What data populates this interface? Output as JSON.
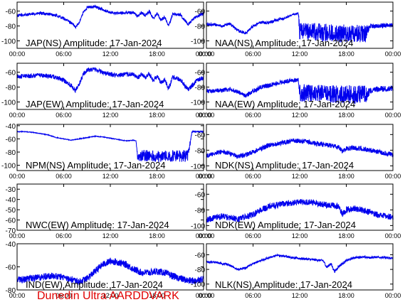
{
  "footer": "Dunedin Ultra AARDDVARK",
  "colors": {
    "trace": "#0000ee",
    "axes": "#000000",
    "footer": "#e00000"
  },
  "chart_data": [
    {
      "type": "line",
      "title": "JAP(NS) Amplitude: 17-Jan-2024",
      "x_ticks": [
        "00:00",
        "06:00",
        "12:00",
        "18:00",
        "00:00"
      ],
      "xlim_hours": [
        0,
        24
      ],
      "y_ticks": [
        -60,
        -80,
        -100
      ],
      "ylim": [
        -110,
        -48
      ],
      "series": [
        {
          "x_hours": [
            0,
            1,
            2,
            3,
            4,
            5,
            6,
            7,
            7.5,
            8,
            8.5,
            9,
            10,
            11,
            12,
            13,
            14,
            15,
            15.5,
            16,
            16.5,
            17,
            17.5,
            18,
            18.5,
            19,
            19.5,
            20,
            21,
            22,
            23,
            24
          ],
          "y": [
            -66,
            -65,
            -64,
            -63,
            -64,
            -66,
            -70,
            -76,
            -82,
            -75,
            -62,
            -55,
            -54,
            -58,
            -62,
            -63,
            -62,
            -62,
            -67,
            -62,
            -66,
            -60,
            -70,
            -63,
            -72,
            -68,
            -80,
            -64,
            -65,
            -78,
            -68,
            -63
          ],
          "noise": [
            2,
            2,
            2,
            2,
            2,
            2,
            2,
            2,
            2,
            2,
            2,
            2,
            2,
            2,
            2,
            2,
            2,
            2,
            2,
            2,
            2,
            2,
            2,
            2,
            2,
            2,
            2,
            2,
            2,
            2,
            2,
            2
          ]
        }
      ]
    },
    {
      "type": "line",
      "title": "NAA(NS) Amplitude: 17-Jan-2024",
      "x_ticks": [
        "00:00",
        "06:00",
        "12:00",
        "18:00",
        "00:00"
      ],
      "xlim_hours": [
        0,
        24
      ],
      "y_ticks": [
        -60,
        -80,
        -100
      ],
      "ylim": [
        -110,
        -48
      ],
      "series": [
        {
          "x_hours": [
            0,
            1,
            2,
            3,
            4,
            5,
            6,
            7,
            8,
            9,
            10,
            11,
            11.8,
            12,
            13,
            14,
            15,
            16,
            17,
            18,
            19,
            20,
            20.5,
            21,
            22,
            23,
            24
          ],
          "y": [
            -78,
            -78,
            -80,
            -77,
            -86,
            -90,
            -80,
            -75,
            -76,
            -72,
            -70,
            -65,
            -63,
            -88,
            -88,
            -88,
            -89,
            -89,
            -90,
            -90,
            -90,
            -90,
            -90,
            -80,
            -80,
            -79,
            -79
          ],
          "noise": [
            2,
            2,
            2,
            2,
            2,
            2,
            2,
            2,
            2,
            2,
            2,
            1,
            1,
            12,
            12,
            12,
            12,
            12,
            12,
            12,
            12,
            12,
            12,
            3,
            3,
            3,
            3
          ]
        }
      ]
    },
    {
      "type": "line",
      "title": "JAP(EW) Amplitude: 17-Jan-2024",
      "x_ticks": [
        "00:00",
        "06:00",
        "12:00",
        "18:00",
        "00:00"
      ],
      "xlim_hours": [
        0,
        24
      ],
      "y_ticks": [
        -60,
        -80,
        -100
      ],
      "ylim": [
        -110,
        -48
      ],
      "series": [
        {
          "x_hours": [
            0,
            1,
            2,
            3,
            4,
            5,
            6,
            7,
            7.5,
            8,
            8.5,
            9,
            10,
            11,
            12,
            13,
            14,
            15,
            15.5,
            16,
            16.5,
            17,
            17.5,
            18,
            18.5,
            19,
            19.5,
            20,
            21,
            22,
            23,
            24
          ],
          "y": [
            -66,
            -65,
            -65,
            -64,
            -65,
            -67,
            -71,
            -78,
            -85,
            -76,
            -63,
            -57,
            -56,
            -60,
            -63,
            -64,
            -63,
            -63,
            -68,
            -63,
            -67,
            -62,
            -72,
            -65,
            -74,
            -70,
            -82,
            -67,
            -70,
            -84,
            -72,
            -67
          ],
          "noise": [
            3,
            3,
            3,
            3,
            3,
            3,
            3,
            3,
            3,
            3,
            3,
            3,
            3,
            3,
            3,
            3,
            3,
            3,
            3,
            3,
            3,
            3,
            3,
            3,
            3,
            3,
            3,
            3,
            3,
            3,
            3,
            3
          ]
        }
      ]
    },
    {
      "type": "line",
      "title": "NAA(EW) Amplitude: 17-Jan-2024",
      "x_ticks": [
        "00:00",
        "06:00",
        "12:00",
        "18:00",
        "00:00"
      ],
      "xlim_hours": [
        0,
        24
      ],
      "y_ticks": [
        -60,
        -80,
        -100
      ],
      "ylim": [
        -110,
        -48
      ],
      "series": [
        {
          "x_hours": [
            0,
            1,
            2,
            3,
            4,
            5,
            6,
            7,
            8,
            9,
            10,
            11,
            11.8,
            12,
            13,
            14,
            15,
            16,
            17,
            18,
            19,
            20,
            20.5,
            21,
            22,
            23,
            24
          ],
          "y": [
            -86,
            -85,
            -84,
            -83,
            -86,
            -92,
            -85,
            -80,
            -78,
            -75,
            -73,
            -71,
            -70,
            -88,
            -88,
            -88,
            -89,
            -89,
            -90,
            -90,
            -90,
            -90,
            -90,
            -85,
            -83,
            -82,
            -82
          ],
          "noise": [
            3,
            3,
            3,
            3,
            3,
            3,
            3,
            3,
            3,
            3,
            3,
            3,
            3,
            12,
            12,
            12,
            12,
            12,
            12,
            12,
            12,
            12,
            12,
            4,
            4,
            4,
            4
          ]
        }
      ]
    },
    {
      "type": "line",
      "title": "NPM(NS) Amplitude: 17-Jan-2024",
      "x_ticks": [
        "00:00",
        "06:00",
        "12:00",
        "18:00",
        "00:00"
      ],
      "xlim_hours": [
        0,
        24
      ],
      "y_ticks": [
        -40,
        -60,
        -80,
        -100
      ],
      "ylim": [
        -108,
        -38
      ],
      "series": [
        {
          "x_hours": [
            0,
            1,
            2,
            3,
            4,
            5,
            6,
            7,
            8,
            9,
            10,
            11,
            12,
            13,
            14,
            15,
            15.3,
            15.5,
            16,
            17,
            18,
            19,
            19.5,
            20,
            21,
            21.5,
            22,
            22.5,
            23,
            24
          ],
          "y": [
            -49,
            -49,
            -50,
            -52,
            -54,
            -58,
            -60,
            -62,
            -60,
            -58,
            -56,
            -57,
            -59,
            -61,
            -63,
            -62,
            -63,
            -88,
            -86,
            -86,
            -86,
            -86,
            -86,
            -86,
            -86,
            -86,
            -86,
            -49,
            -49,
            -49
          ],
          "noise": [
            0.5,
            0.5,
            0.5,
            0.5,
            0.5,
            0.5,
            0.5,
            0.5,
            0.5,
            0.5,
            0.5,
            0.5,
            0.5,
            0.5,
            0.5,
            0.5,
            0.5,
            9,
            9,
            9,
            9,
            9,
            9,
            9,
            9,
            9,
            9,
            1,
            1,
            1
          ]
        }
      ]
    },
    {
      "type": "line",
      "title": "NDK(NS) Amplitude: 17-Jan-2024",
      "x_ticks": [
        "00:00",
        "06:00",
        "12:00",
        "18:00",
        "00:00"
      ],
      "xlim_hours": [
        0,
        24
      ],
      "y_ticks": [
        -60,
        -80,
        -100
      ],
      "ylim": [
        -106,
        -47
      ],
      "series": [
        {
          "x_hours": [
            0,
            1,
            2,
            3,
            4,
            5,
            6,
            7,
            8,
            9,
            10,
            11,
            12,
            13,
            14,
            15,
            16,
            17,
            17.5,
            18,
            19,
            20,
            21,
            22,
            23,
            24
          ],
          "y": [
            -87,
            -84,
            -82,
            -84,
            -88,
            -86,
            -82,
            -78,
            -74,
            -72,
            -70,
            -68,
            -68,
            -69,
            -71,
            -73,
            -74,
            -76,
            -82,
            -78,
            -77,
            -78,
            -80,
            -82,
            -84,
            -86
          ],
          "noise": [
            3,
            3,
            3,
            3,
            3,
            3,
            3,
            3,
            3,
            3,
            3,
            3,
            3,
            3,
            3,
            3,
            3,
            3,
            3,
            3,
            3,
            3,
            3,
            3,
            3,
            3
          ]
        }
      ]
    },
    {
      "type": "line",
      "title": "NWC(EW) Amplitude: 17-Jan-2024",
      "x_ticks": [
        "00:00",
        "06:00",
        "12:00",
        "18:00",
        "00:00"
      ],
      "xlim_hours": [
        0,
        24
      ],
      "y_ticks": [
        -30,
        -40,
        -50,
        -60,
        -70
      ],
      "ylim": [
        -70,
        -25
      ],
      "series": []
    },
    {
      "type": "line",
      "title": "NDK(EW) Amplitude: 17-Jan-2024",
      "x_ticks": [
        "00:00",
        "06:00",
        "12:00",
        "18:00",
        "00:00"
      ],
      "xlim_hours": [
        0,
        24
      ],
      "y_ticks": [
        -60,
        -80,
        -100
      ],
      "ylim": [
        -106,
        -47
      ],
      "series": [
        {
          "x_hours": [
            0,
            1,
            2,
            3,
            4,
            5,
            6,
            7,
            8,
            9,
            10,
            11,
            12,
            13,
            14,
            15,
            16,
            17,
            17.5,
            18,
            19,
            20,
            21,
            22,
            23,
            24
          ],
          "y": [
            -93,
            -90,
            -88,
            -90,
            -92,
            -89,
            -86,
            -80,
            -76,
            -74,
            -72,
            -71,
            -70,
            -70,
            -71,
            -73,
            -74,
            -76,
            -85,
            -80,
            -78,
            -80,
            -83,
            -86,
            -88,
            -89
          ],
          "noise": [
            4,
            4,
            4,
            4,
            4,
            4,
            4,
            4,
            4,
            4,
            4,
            4,
            4,
            4,
            4,
            4,
            4,
            4,
            4,
            4,
            4,
            4,
            4,
            4,
            4,
            4
          ]
        }
      ]
    },
    {
      "type": "line",
      "title": "IND(EW) Amplitude: 17-Jan-2024",
      "x_ticks": [
        "00:00",
        "06:00",
        "12:00",
        "18:00",
        "00:00"
      ],
      "xlim_hours": [
        0,
        24
      ],
      "y_ticks": [
        -40,
        -60,
        -80
      ],
      "ylim": [
        -80,
        -40
      ],
      "series": [
        {
          "x_hours": [
            0,
            1,
            2,
            3,
            4,
            5,
            6,
            7,
            8,
            9,
            10,
            11,
            12,
            13,
            14,
            15,
            16,
            17,
            18,
            19,
            20,
            21,
            22,
            23,
            24
          ],
          "y": [
            -71,
            -71,
            -70,
            -69,
            -68,
            -68,
            -69,
            -71,
            -73,
            -70,
            -64,
            -58,
            -55,
            -56,
            -58,
            -62,
            -65,
            -65,
            -64,
            -65,
            -68,
            -70,
            -72,
            -72,
            -70
          ],
          "noise": [
            3,
            3,
            3,
            3,
            3,
            3,
            3,
            3,
            3,
            3,
            3,
            3,
            3,
            3,
            3,
            3,
            3,
            3,
            3,
            3,
            3,
            3,
            3,
            3,
            3
          ]
        }
      ]
    },
    {
      "type": "line",
      "title": "NLK(NS) Amplitude: 17-Jan-2024",
      "x_ticks": [
        "00:00",
        "06:00",
        "12:00",
        "18:00",
        "00:00"
      ],
      "xlim_hours": [
        0,
        24
      ],
      "y_ticks": [
        -60,
        -80,
        -100
      ],
      "ylim": [
        -108,
        -45
      ],
      "series": [
        {
          "x_hours": [
            0,
            1,
            2,
            3,
            4,
            5,
            6,
            7,
            8,
            9,
            10,
            11,
            12,
            13,
            14,
            15,
            15.5,
            16,
            16.5,
            17,
            18,
            19,
            20,
            21,
            22,
            23,
            24
          ],
          "y": [
            -70,
            -70,
            -72,
            -74,
            -80,
            -78,
            -72,
            -68,
            -64,
            -61,
            -62,
            -64,
            -65,
            -66,
            -67,
            -68,
            -77,
            -72,
            -83,
            -76,
            -68,
            -64,
            -63,
            -64,
            -63,
            -64,
            -65
          ],
          "noise": [
            1.5,
            1.5,
            1.5,
            1.5,
            1.5,
            1.5,
            1.5,
            1.5,
            1.5,
            1.5,
            1.5,
            1.5,
            1.5,
            1.5,
            1.5,
            1.5,
            2,
            2,
            2,
            2,
            1.5,
            1.5,
            1.5,
            1.5,
            1.5,
            1.5,
            1.5
          ]
        }
      ]
    }
  ]
}
